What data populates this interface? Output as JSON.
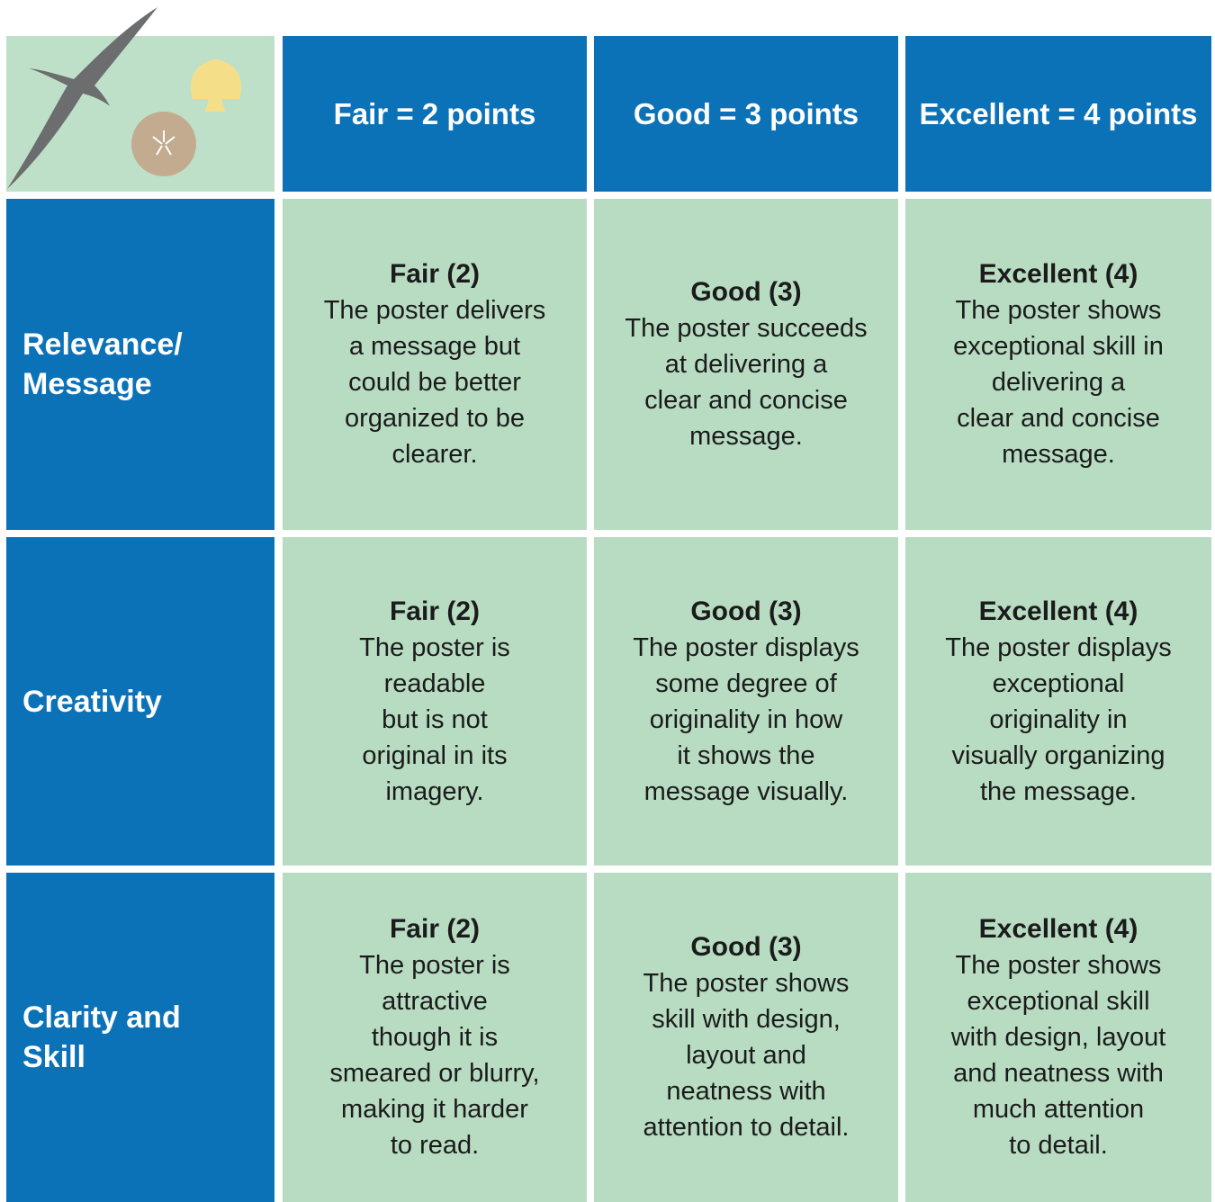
{
  "header": {
    "columns": [
      "Fair = 2 points",
      "Good = 3 points",
      "Excellent = 4 points"
    ]
  },
  "rows": [
    {
      "label": [
        "Relevance/",
        "Message"
      ],
      "cells": [
        {
          "title": "Fair (2)",
          "lines": [
            "The poster delivers",
            "a message but",
            "could be better",
            "organized to be",
            "clearer."
          ]
        },
        {
          "title": "Good (3)",
          "lines": [
            "The poster succeeds",
            "at delivering a",
            "clear and concise",
            "message."
          ]
        },
        {
          "title": "Excellent (4)",
          "lines": [
            "The poster shows",
            "exceptional skill in",
            "delivering a",
            "clear and concise",
            "message."
          ]
        }
      ]
    },
    {
      "label": [
        "Creativity"
      ],
      "cells": [
        {
          "title": "Fair (2)",
          "lines": [
            "The poster is",
            "readable",
            "but is not",
            "original in its",
            "imagery."
          ]
        },
        {
          "title": "Good (3)",
          "lines": [
            "The poster displays",
            "some degree of",
            "originality in how",
            "it shows the",
            "message visually."
          ]
        },
        {
          "title": "Excellent (4)",
          "lines": [
            "The poster displays",
            "exceptional",
            "originality in",
            "visually organizing",
            "the message."
          ]
        }
      ]
    },
    {
      "label": [
        "Clarity and",
        "Skill"
      ],
      "cells": [
        {
          "title": "Fair (2)",
          "lines": [
            "The poster is",
            "attractive",
            "though it is",
            "smeared or blurry,",
            "making it harder",
            "to read."
          ]
        },
        {
          "title": "Good (3)",
          "lines": [
            "The poster shows",
            "skill with design,",
            "layout and",
            "neatness with",
            "attention to detail."
          ]
        },
        {
          "title": "Excellent (4)",
          "lines": [
            "The poster shows",
            "exceptional skill",
            "with design, layout",
            "and neatness with",
            "much attention",
            "to detail."
          ]
        }
      ]
    }
  ]
}
